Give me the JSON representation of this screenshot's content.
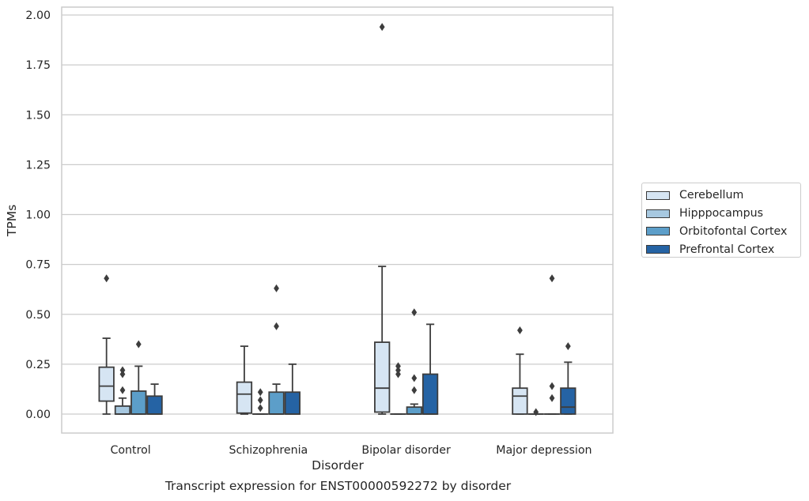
{
  "chart_data": {
    "type": "box",
    "title": "",
    "xlabel": "Disorder",
    "ylabel": "TPMs",
    "caption": "Transcript expression for ENST00000592272 by disorder",
    "categories": [
      "Control",
      "Schizophrenia",
      "Bipolar disorder",
      "Major depression"
    ],
    "ylim": [
      -0.09,
      2.04
    ],
    "yticks": [
      "0.00",
      "0.25",
      "0.50",
      "0.75",
      "1.00",
      "1.25",
      "1.50",
      "1.75",
      "2.00"
    ],
    "grid": true,
    "legend_position": "right",
    "series": [
      {
        "name": "Cerebellum",
        "color": "#d6e5f3",
        "boxes": [
          {
            "whislo": 0.0,
            "q1": 0.065,
            "med": 0.14,
            "q3": 0.235,
            "whishi": 0.38,
            "fliers": [
              0.68
            ]
          },
          {
            "whislo": 0.0,
            "q1": 0.005,
            "med": 0.1,
            "q3": 0.16,
            "whishi": 0.34,
            "fliers": []
          },
          {
            "whislo": 0.0,
            "q1": 0.01,
            "med": 0.13,
            "q3": 0.36,
            "whishi": 0.74,
            "fliers": [
              1.94
            ]
          },
          {
            "whislo": 0.0,
            "q1": 0.0,
            "med": 0.09,
            "q3": 0.13,
            "whishi": 0.3,
            "fliers": [
              0.42
            ]
          }
        ]
      },
      {
        "name": "Hipppocampus",
        "color": "#a7c8e0",
        "boxes": [
          {
            "whislo": 0.0,
            "q1": 0.0,
            "med": 0.0,
            "q3": 0.04,
            "whishi": 0.08,
            "fliers": [
              0.12,
              0.2,
              0.22
            ]
          },
          {
            "whislo": 0.0,
            "q1": 0.0,
            "med": 0.0,
            "q3": 0.0,
            "whishi": 0.0,
            "fliers": [
              0.03,
              0.07,
              0.11
            ]
          },
          {
            "whislo": 0.0,
            "q1": 0.0,
            "med": 0.0,
            "q3": 0.0,
            "whishi": 0.0,
            "fliers": [
              0.2,
              0.22,
              0.24
            ]
          },
          {
            "whislo": 0.0,
            "q1": 0.0,
            "med": 0.0,
            "q3": 0.0,
            "whishi": 0.0,
            "fliers": [
              0.01
            ]
          }
        ]
      },
      {
        "name": "Orbitofontal Cortex",
        "color": "#5c9ec9",
        "boxes": [
          {
            "whislo": 0.0,
            "q1": 0.0,
            "med": 0.0,
            "q3": 0.115,
            "whishi": 0.24,
            "fliers": [
              0.35
            ]
          },
          {
            "whislo": 0.0,
            "q1": 0.0,
            "med": 0.0,
            "q3": 0.11,
            "whishi": 0.15,
            "fliers": [
              0.44,
              0.63
            ]
          },
          {
            "whislo": 0.0,
            "q1": 0.0,
            "med": 0.0,
            "q3": 0.035,
            "whishi": 0.05,
            "fliers": [
              0.12,
              0.18,
              0.51
            ]
          },
          {
            "whislo": 0.0,
            "q1": 0.0,
            "med": 0.0,
            "q3": 0.0,
            "whishi": 0.0,
            "fliers": [
              0.08,
              0.14,
              0.68
            ]
          }
        ]
      },
      {
        "name": "Prefrontal Cortex",
        "color": "#2563a4",
        "boxes": [
          {
            "whislo": 0.0,
            "q1": 0.0,
            "med": 0.0,
            "q3": 0.09,
            "whishi": 0.15,
            "fliers": []
          },
          {
            "whislo": 0.0,
            "q1": 0.0,
            "med": 0.0,
            "q3": 0.11,
            "whishi": 0.25,
            "fliers": []
          },
          {
            "whislo": 0.0,
            "q1": 0.0,
            "med": 0.0,
            "q3": 0.2,
            "whishi": 0.45,
            "fliers": []
          },
          {
            "whislo": 0.0,
            "q1": 0.0,
            "med": 0.035,
            "q3": 0.13,
            "whishi": 0.26,
            "fliers": [
              0.34
            ]
          }
        ]
      }
    ]
  }
}
